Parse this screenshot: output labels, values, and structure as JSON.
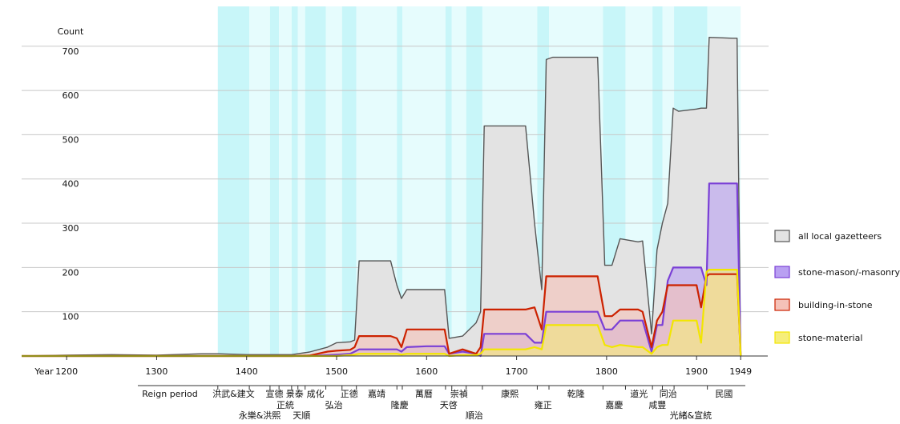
{
  "chart_data": {
    "type": "area",
    "y_label": "Count",
    "x_label": "Year",
    "reign_label": "Reign period",
    "xlim": [
      1150,
      1980
    ],
    "xticks": [
      1200,
      1300,
      1400,
      1500,
      1600,
      1700,
      1800,
      1900,
      1949
    ],
    "ylim": [
      0,
      790
    ],
    "yticks": [
      100,
      200,
      300,
      400,
      500,
      600,
      700
    ],
    "grid": true,
    "legend": "right",
    "x": [
      1150,
      1200,
      1250,
      1300,
      1350,
      1368,
      1400,
      1450,
      1470,
      1490,
      1500,
      1515,
      1520,
      1525,
      1560,
      1567,
      1572,
      1578,
      1600,
      1620,
      1625,
      1640,
      1655,
      1660,
      1664,
      1710,
      1720,
      1728,
      1733,
      1740,
      1790,
      1798,
      1806,
      1815,
      1835,
      1840,
      1850,
      1856,
      1862,
      1868,
      1874,
      1880,
      1900,
      1905,
      1911,
      1914,
      1940,
      1945,
      1949
    ],
    "series": [
      {
        "name": "all local gazetteers",
        "color": "#555555",
        "fill": "#e3e3e3",
        "values": [
          0,
          2,
          3,
          2,
          5,
          5,
          3,
          3,
          9,
          20,
          30,
          32,
          36,
          215,
          215,
          160,
          130,
          150,
          150,
          150,
          40,
          45,
          75,
          100,
          520,
          520,
          300,
          150,
          670,
          675,
          675,
          205,
          205,
          265,
          258,
          260,
          50,
          240,
          300,
          345,
          560,
          553,
          558,
          560,
          560,
          720,
          718,
          718,
          0
        ]
      },
      {
        "name": "stone-mason/-masonry",
        "color": "#7a3fd6",
        "fill": "#b9a0f2",
        "values": [
          0,
          0,
          0,
          0,
          0,
          0,
          0,
          0,
          0,
          2,
          3,
          5,
          10,
          15,
          15,
          15,
          10,
          20,
          22,
          22,
          5,
          10,
          5,
          0,
          50,
          50,
          30,
          30,
          100,
          100,
          100,
          60,
          60,
          80,
          80,
          80,
          10,
          70,
          70,
          170,
          200,
          200,
          200,
          200,
          160,
          390,
          390,
          390,
          0
        ]
      },
      {
        "name": "building-in-stone",
        "color": "#cc2200",
        "fill": "#f5c2b8",
        "values": [
          0,
          0,
          0,
          0,
          0,
          0,
          0,
          0,
          1,
          10,
          12,
          14,
          20,
          45,
          45,
          40,
          20,
          60,
          60,
          60,
          5,
          15,
          5,
          20,
          105,
          105,
          110,
          60,
          180,
          180,
          180,
          90,
          90,
          105,
          105,
          100,
          20,
          80,
          100,
          160,
          160,
          160,
          160,
          110,
          180,
          185,
          185,
          185,
          0
        ]
      },
      {
        "name": "stone-material",
        "color": "#f2e600",
        "fill": "#f6ee7a",
        "values": [
          0,
          0,
          0,
          0,
          0,
          0,
          0,
          0,
          0,
          0,
          0,
          2,
          3,
          5,
          5,
          5,
          3,
          5,
          5,
          5,
          0,
          2,
          2,
          5,
          15,
          15,
          20,
          15,
          70,
          70,
          70,
          25,
          20,
          25,
          20,
          20,
          5,
          20,
          25,
          25,
          80,
          80,
          80,
          30,
          190,
          195,
          195,
          195,
          0
        ]
      }
    ],
    "reigns": [
      {
        "name": "洪武&建文",
        "start": 1368,
        "end": 1403
      },
      {
        "name": "永樂&洪熙",
        "start": 1403,
        "end": 1426
      },
      {
        "name": "宣德",
        "start": 1426,
        "end": 1436
      },
      {
        "name": "正統",
        "start": 1436,
        "end": 1450
      },
      {
        "name": "景泰",
        "start": 1450,
        "end": 1457
      },
      {
        "name": "天順",
        "start": 1457,
        "end": 1465
      },
      {
        "name": "成化",
        "start": 1465,
        "end": 1488
      },
      {
        "name": "弘治",
        "start": 1488,
        "end": 1506
      },
      {
        "name": "正德",
        "start": 1506,
        "end": 1522
      },
      {
        "name": "嘉靖",
        "start": 1522,
        "end": 1567
      },
      {
        "name": "隆慶",
        "start": 1567,
        "end": 1573
      },
      {
        "name": "萬曆",
        "start": 1573,
        "end": 1621
      },
      {
        "name": "天啓",
        "start": 1621,
        "end": 1628
      },
      {
        "name": "崇禎",
        "start": 1628,
        "end": 1644
      },
      {
        "name": "順治",
        "start": 1644,
        "end": 1662
      },
      {
        "name": "康熙",
        "start": 1662,
        "end": 1723
      },
      {
        "name": "雍正",
        "start": 1723,
        "end": 1736
      },
      {
        "name": "乾隆",
        "start": 1736,
        "end": 1796
      },
      {
        "name": "嘉慶",
        "start": 1796,
        "end": 1821
      },
      {
        "name": "道光",
        "start": 1821,
        "end": 1851
      },
      {
        "name": "咸豐",
        "start": 1851,
        "end": 1862
      },
      {
        "name": "同治",
        "start": 1862,
        "end": 1875
      },
      {
        "name": "光緒&宣統",
        "start": 1875,
        "end": 1912
      },
      {
        "name": "民國",
        "start": 1912,
        "end": 1949
      }
    ]
  }
}
